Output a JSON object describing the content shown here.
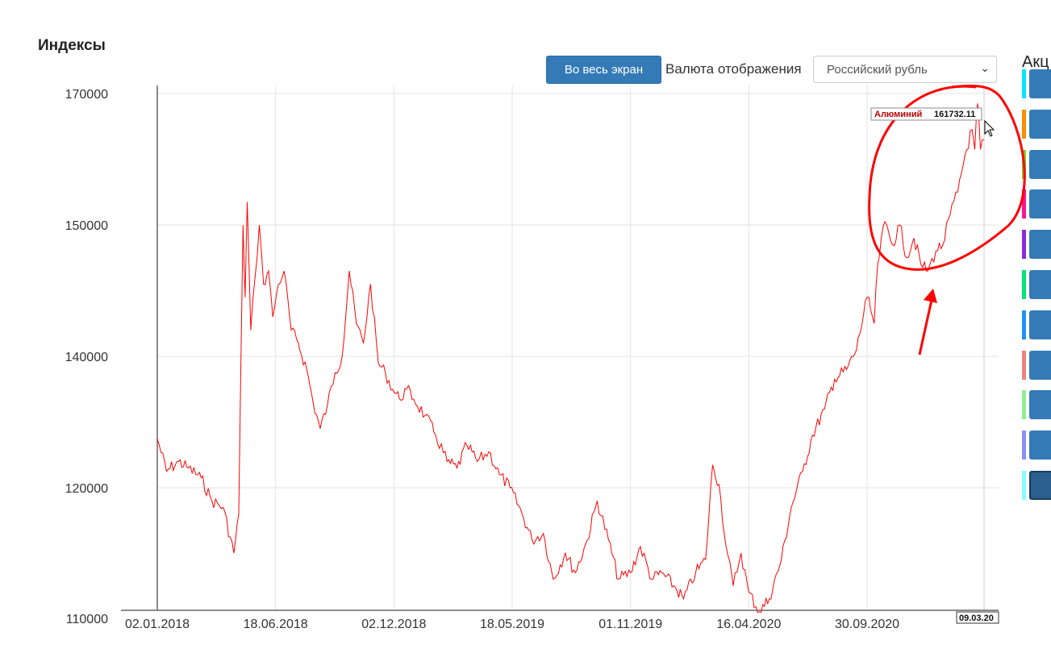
{
  "page": {
    "title": "Индексы",
    "fullscreen_label": "Во весь экран",
    "currency_label": "Валюта отображения",
    "currency_value": "Российский рубль",
    "side_title": "Акц"
  },
  "side_series": [
    {
      "color": "#00e5ff"
    },
    {
      "color": "#ff8c00"
    },
    {
      "color": "#7ed321"
    },
    {
      "color": "#ff1493"
    },
    {
      "color": "#8a2be2"
    },
    {
      "color": "#00e676"
    },
    {
      "color": "#1e90ff"
    },
    {
      "color": "#f08080"
    },
    {
      "color": "#90ee90"
    },
    {
      "color": "#8c8cff"
    },
    {
      "color": "#87ffff",
      "active": true
    }
  ],
  "tooltip": {
    "series": "Алюминий",
    "value": "161732.11",
    "date": "09.03.20"
  },
  "chart_data": {
    "type": "line",
    "title": "",
    "xlabel": "",
    "ylabel": "",
    "ylim": [
      110000,
      170000
    ],
    "y_ticks": [
      "170000",
      "150000",
      "140000",
      "120000",
      "110000"
    ],
    "x_ticks": [
      "02.01.2018",
      "18.06.2018",
      "02.12.2018",
      "18.05.2019",
      "01.11.2019",
      "16.04.2020",
      "30.09.2020"
    ],
    "grid": true,
    "line_color": "#ff0000",
    "series": [
      {
        "name": "Алюминий",
        "points": [
          [
            "02.01.2018",
            127500
          ],
          [
            "15.01.2018",
            122500
          ],
          [
            "01.02.2018",
            124000
          ],
          [
            "15.02.2018",
            123000
          ],
          [
            "05.03.2018",
            121500
          ],
          [
            "20.03.2018",
            119000
          ],
          [
            "05.04.2018",
            118500
          ],
          [
            "20.04.2018",
            115000
          ],
          [
            "27.04.2018",
            118000
          ],
          [
            "03.05.2018",
            150000
          ],
          [
            "06.05.2018",
            144500
          ],
          [
            "09.05.2018",
            153500
          ],
          [
            "14.05.2018",
            142000
          ],
          [
            "20.05.2018",
            146000
          ],
          [
            "26.05.2018",
            150000
          ],
          [
            "01.06.2018",
            145500
          ],
          [
            "08.06.2018",
            146500
          ],
          [
            "14.06.2018",
            143000
          ],
          [
            "22.06.2018",
            145500
          ],
          [
            "30.06.2018",
            146500
          ],
          [
            "10.07.2018",
            142000
          ],
          [
            "20.07.2018",
            141000
          ],
          [
            "01.08.2018",
            138000
          ],
          [
            "10.08.2018",
            133000
          ],
          [
            "20.08.2018",
            129000
          ],
          [
            "30.08.2018",
            132500
          ],
          [
            "10.09.2018",
            137500
          ],
          [
            "20.09.2018",
            140000
          ],
          [
            "30.09.2018",
            146500
          ],
          [
            "10.10.2018",
            142500
          ],
          [
            "20.10.2018",
            141000
          ],
          [
            "30.10.2018",
            145500
          ],
          [
            "10.11.2018",
            139000
          ],
          [
            "20.11.2018",
            137500
          ],
          [
            "30.11.2018",
            135000
          ],
          [
            "10.12.2018",
            133500
          ],
          [
            "20.12.2018",
            135000
          ],
          [
            "30.12.2018",
            133500
          ],
          [
            "15.01.2019",
            131000
          ],
          [
            "30.01.2019",
            128000
          ],
          [
            "15.02.2019",
            124000
          ],
          [
            "01.03.2019",
            123000
          ],
          [
            "15.03.2019",
            126500
          ],
          [
            "30.03.2019",
            124000
          ],
          [
            "15.04.2019",
            125500
          ],
          [
            "30.04.2019",
            122000
          ],
          [
            "15.05.2019",
            120000
          ],
          [
            "01.06.2019",
            118000
          ],
          [
            "15.06.2019",
            116000
          ],
          [
            "01.07.2019",
            116500
          ],
          [
            "15.07.2019",
            113000
          ],
          [
            "01.08.2019",
            115000
          ],
          [
            "15.08.2019",
            113500
          ],
          [
            "01.09.2019",
            116000
          ],
          [
            "15.09.2019",
            119000
          ],
          [
            "01.10.2019",
            116000
          ],
          [
            "15.10.2019",
            113000
          ],
          [
            "01.11.2019",
            113500
          ],
          [
            "15.11.2019",
            115500
          ],
          [
            "01.12.2019",
            113000
          ],
          [
            "15.12.2019",
            113500
          ],
          [
            "01.01.2020",
            112500
          ],
          [
            "15.01.2020",
            111500
          ],
          [
            "01.02.2020",
            113500
          ],
          [
            "15.02.2020",
            114500
          ],
          [
            "25.02.2020",
            123500
          ],
          [
            "05.03.2020",
            120500
          ],
          [
            "15.03.2020",
            115500
          ],
          [
            "25.03.2020",
            112500
          ],
          [
            "05.04.2020",
            115000
          ],
          [
            "16.04.2020",
            112000
          ],
          [
            "01.05.2020",
            110500
          ],
          [
            "15.05.2020",
            111500
          ],
          [
            "01.06.2020",
            114500
          ],
          [
            "15.06.2020",
            118500
          ],
          [
            "01.07.2020",
            122500
          ],
          [
            "15.07.2020",
            128000
          ],
          [
            "01.08.2020",
            132000
          ],
          [
            "15.08.2020",
            136500
          ],
          [
            "01.09.2020",
            138000
          ],
          [
            "15.09.2020",
            140500
          ],
          [
            "30.09.2020",
            144500
          ],
          [
            "10.10.2020",
            142500
          ],
          [
            "15.10.2020",
            147000
          ],
          [
            "25.10.2020",
            150500
          ],
          [
            "05.11.2020",
            148500
          ],
          [
            "15.11.2020",
            150000
          ],
          [
            "25.11.2020",
            147500
          ],
          [
            "05.12.2020",
            149000
          ],
          [
            "15.12.2020",
            147000
          ],
          [
            "25.12.2020",
            146500
          ],
          [
            "05.01.2021",
            148000
          ],
          [
            "15.01.2021",
            148500
          ],
          [
            "25.01.2021",
            151500
          ],
          [
            "05.02.2021",
            155000
          ],
          [
            "15.02.2021",
            160500
          ],
          [
            "25.02.2021",
            164500
          ],
          [
            "01.03.2021",
            161500
          ],
          [
            "05.03.2021",
            168500
          ],
          [
            "09.03.2021",
            161500
          ],
          [
            "14.03.2021",
            163000
          ]
        ]
      }
    ]
  }
}
